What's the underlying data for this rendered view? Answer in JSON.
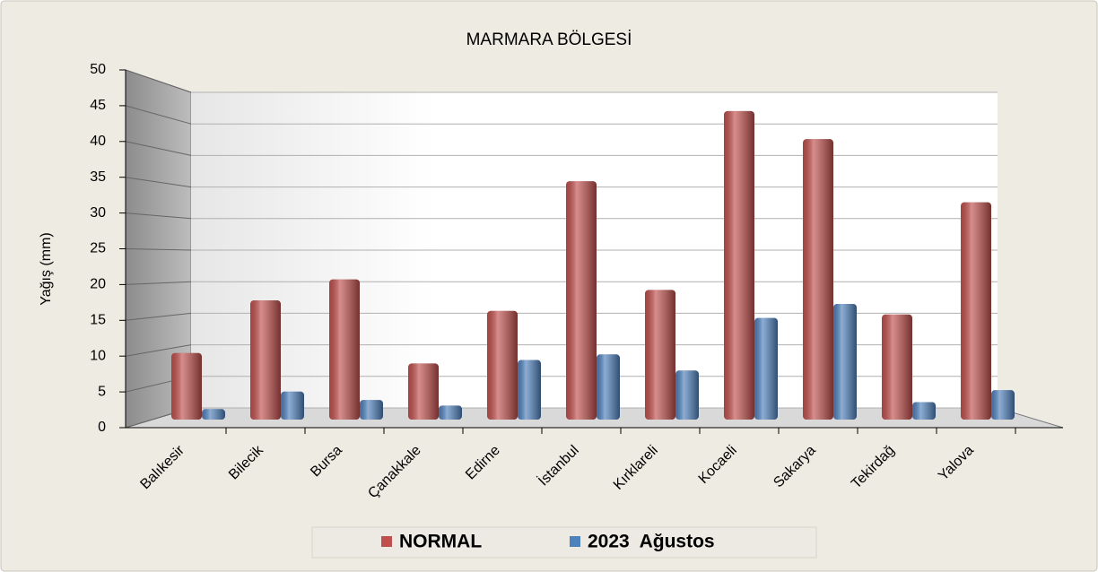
{
  "chart_data": {
    "type": "bar",
    "title": "MARMARA BÖLGESİ",
    "y_label": "Yağış (mm)",
    "categories": [
      "Balıkesir",
      "Bilecik",
      "Bursa",
      "Çanakkale",
      "Edirne",
      "İstanbul",
      "Kırklareli",
      "Kocaeli",
      "Sakarya",
      "Tekirdağ",
      "Yalova"
    ],
    "series": [
      {
        "name": "NORMAL",
        "color": "#c0504d",
        "values": [
          9.5,
          17,
          20,
          8,
          15.5,
          34,
          18.5,
          44,
          40,
          15,
          31
        ]
      },
      {
        "name": "2023  Ağustos",
        "color": "#4f81bd",
        "values": [
          1.5,
          4,
          2.8,
          2,
          8.5,
          9.3,
          7,
          14.5,
          16.5,
          2.5,
          4.2
        ]
      }
    ],
    "ylim": [
      0,
      50
    ],
    "yticks": [
      0,
      5,
      10,
      15,
      20,
      25,
      30,
      35,
      40,
      45,
      50
    ],
    "grid": true,
    "legend": "bottom"
  }
}
